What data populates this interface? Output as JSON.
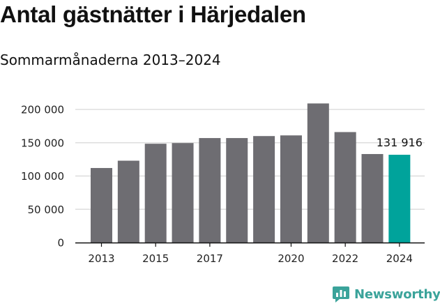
{
  "title": "Antal gästnätter i Härjedalen",
  "subtitle": "Sommarmånaderna 2013–2024",
  "colors": {
    "bar": "#6e6d72",
    "highlight": "#00a39b",
    "grid": "#dddddd",
    "axis": "#111111",
    "brand": "#3aa39a"
  },
  "brand": {
    "name": "Newsworthy",
    "icon": "newsworthy-chart-icon"
  },
  "chart_data": {
    "type": "bar",
    "categories": [
      "2013",
      "2014",
      "2015",
      "2016",
      "2017",
      "2018",
      "2019",
      "2020",
      "2021",
      "2022",
      "2023",
      "2024"
    ],
    "values": [
      112000,
      123000,
      148500,
      149500,
      157000,
      157000,
      160000,
      161000,
      209000,
      166000,
      133000,
      131916
    ],
    "highlight_index": 11,
    "data_labels": [
      {
        "index": 11,
        "text": "131 916"
      }
    ],
    "x_tick_labels": [
      "2013",
      "2015",
      "2017",
      "2020",
      "2022",
      "2024"
    ],
    "y_ticks": [
      0,
      50000,
      100000,
      150000,
      200000
    ],
    "y_tick_labels": [
      "0",
      "50 000",
      "100 000",
      "150 000",
      "200 000"
    ],
    "ylim": [
      0,
      200000
    ],
    "xlabel": "",
    "ylabel": "",
    "grid": true,
    "legend": "none"
  }
}
